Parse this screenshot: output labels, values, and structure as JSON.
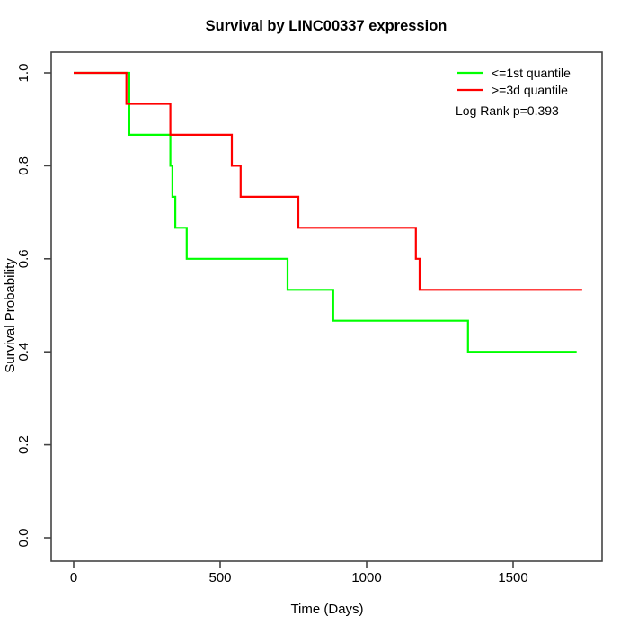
{
  "figure": {
    "background": "#ffffff",
    "axis_color": "#444444",
    "text_color": "#000000"
  },
  "chart_data": {
    "type": "line",
    "variant": "kaplan-meier-step",
    "title": "Survival by LINC00337 expression",
    "xlabel": "Time (Days)",
    "ylabel": "Survival Probability",
    "xlim": [
      -70,
      1800
    ],
    "ylim": [
      0,
      1.04
    ],
    "grid": false,
    "legend_position": "topright",
    "annotation": "Log Rank p=0.393",
    "xticks": {
      "values": [
        0,
        500,
        1000,
        1500
      ],
      "labels": [
        "0",
        "500",
        "1000",
        "1500"
      ]
    },
    "yticks": {
      "values": [
        0,
        0.2,
        0.4,
        0.6,
        0.8,
        1.0
      ],
      "labels": [
        "0.0",
        "0.2",
        "0.4",
        "0.6",
        "0.8",
        "1.0"
      ]
    },
    "series": [
      {
        "name": "<=1st quantile",
        "color": "#00ff00",
        "points": [
          [
            0,
            1.0
          ],
          [
            190,
            1.0
          ],
          [
            190,
            0.8667
          ],
          [
            330,
            0.8667
          ],
          [
            330,
            0.8
          ],
          [
            337,
            0.8
          ],
          [
            337,
            0.7333
          ],
          [
            347,
            0.7333
          ],
          [
            347,
            0.6667
          ],
          [
            386,
            0.6667
          ],
          [
            386,
            0.6
          ],
          [
            730,
            0.6
          ],
          [
            730,
            0.5333
          ],
          [
            886,
            0.5333
          ],
          [
            886,
            0.4667
          ],
          [
            1346,
            0.4667
          ],
          [
            1346,
            0.4
          ],
          [
            1717,
            0.4
          ]
        ]
      },
      {
        "name": ">=3d quantile",
        "color": "#ff0000",
        "points": [
          [
            0,
            1.0
          ],
          [
            180,
            1.0
          ],
          [
            180,
            0.9333
          ],
          [
            330,
            0.9333
          ],
          [
            330,
            0.8667
          ],
          [
            540,
            0.8667
          ],
          [
            540,
            0.8
          ],
          [
            570,
            0.8
          ],
          [
            570,
            0.7333
          ],
          [
            767,
            0.7333
          ],
          [
            767,
            0.6667
          ],
          [
            1168,
            0.6667
          ],
          [
            1168,
            0.6
          ],
          [
            1181,
            0.6
          ],
          [
            1181,
            0.5333
          ],
          [
            1736,
            0.5333
          ]
        ]
      }
    ]
  }
}
